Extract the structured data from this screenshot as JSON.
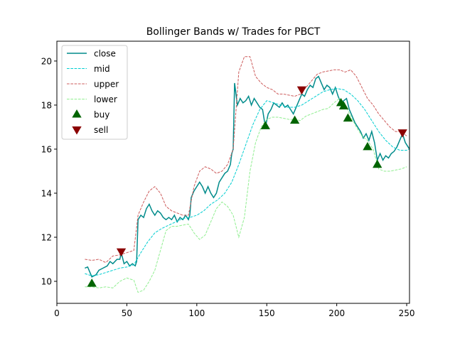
{
  "chart_data": {
    "type": "line",
    "title": "Bollinger Bands w/ Trades for PBCT",
    "xlabel": "",
    "ylabel": "",
    "xlim": [
      0,
      252
    ],
    "ylim": [
      9.0,
      20.9
    ],
    "x_ticks": [
      0,
      50,
      100,
      150,
      200,
      250
    ],
    "y_ticks": [
      10,
      12,
      14,
      16,
      18,
      20
    ],
    "grid": false,
    "legend_placement": "top-left",
    "series": [
      {
        "name": "close",
        "style": "solid",
        "color": "#008b8b",
        "points": [
          [
            20,
            10.6
          ],
          [
            22,
            10.65
          ],
          [
            25,
            10.2
          ],
          [
            28,
            10.3
          ],
          [
            30,
            10.5
          ],
          [
            33,
            10.6
          ],
          [
            36,
            10.7
          ],
          [
            38,
            10.9
          ],
          [
            40,
            10.8
          ],
          [
            43,
            11.0
          ],
          [
            45,
            11.0
          ],
          [
            46,
            11.3
          ],
          [
            48,
            10.8
          ],
          [
            50,
            10.9
          ],
          [
            52,
            10.7
          ],
          [
            54,
            10.8
          ],
          [
            56,
            10.7
          ],
          [
            57,
            10.9
          ],
          [
            58,
            12.8
          ],
          [
            60,
            13.0
          ],
          [
            62,
            12.9
          ],
          [
            64,
            13.3
          ],
          [
            66,
            13.5
          ],
          [
            68,
            13.2
          ],
          [
            70,
            13.0
          ],
          [
            72,
            13.2
          ],
          [
            74,
            13.1
          ],
          [
            76,
            12.9
          ],
          [
            78,
            12.8
          ],
          [
            80,
            12.9
          ],
          [
            82,
            12.8
          ],
          [
            84,
            13.0
          ],
          [
            86,
            12.7
          ],
          [
            88,
            12.9
          ],
          [
            90,
            12.8
          ],
          [
            92,
            13.0
          ],
          [
            94,
            12.8
          ],
          [
            95,
            13.0
          ],
          [
            96,
            13.8
          ],
          [
            98,
            14.1
          ],
          [
            100,
            14.3
          ],
          [
            102,
            14.5
          ],
          [
            104,
            14.3
          ],
          [
            106,
            14.0
          ],
          [
            108,
            14.3
          ],
          [
            110,
            14.0
          ],
          [
            112,
            13.8
          ],
          [
            114,
            14.0
          ],
          [
            116,
            14.5
          ],
          [
            118,
            14.7
          ],
          [
            120,
            14.9
          ],
          [
            122,
            15.0
          ],
          [
            124,
            15.3
          ],
          [
            125,
            15.8
          ],
          [
            126,
            16.0
          ],
          [
            127,
            19.0
          ],
          [
            129,
            18.0
          ],
          [
            131,
            18.3
          ],
          [
            133,
            18.1
          ],
          [
            135,
            18.2
          ],
          [
            137,
            18.4
          ],
          [
            139,
            18.0
          ],
          [
            141,
            18.3
          ],
          [
            143,
            18.1
          ],
          [
            145,
            17.9
          ],
          [
            147,
            17.8
          ],
          [
            149,
            17.0
          ],
          [
            151,
            17.6
          ],
          [
            153,
            17.8
          ],
          [
            155,
            18.1
          ],
          [
            157,
            18.0
          ],
          [
            159,
            17.9
          ],
          [
            161,
            18.1
          ],
          [
            163,
            17.9
          ],
          [
            165,
            18.0
          ],
          [
            167,
            17.8
          ],
          [
            169,
            17.6
          ],
          [
            171,
            17.9
          ],
          [
            173,
            18.2
          ],
          [
            175,
            18.5
          ],
          [
            177,
            18.4
          ],
          [
            179,
            18.7
          ],
          [
            181,
            18.9
          ],
          [
            183,
            18.8
          ],
          [
            185,
            19.2
          ],
          [
            187,
            19.3
          ],
          [
            189,
            19.0
          ],
          [
            191,
            18.7
          ],
          [
            193,
            18.9
          ],
          [
            195,
            18.8
          ],
          [
            197,
            18.5
          ],
          [
            199,
            18.8
          ],
          [
            201,
            18.4
          ],
          [
            203,
            18.1
          ],
          [
            205,
            18.2
          ],
          [
            207,
            18.3
          ],
          [
            209,
            17.8
          ],
          [
            211,
            17.5
          ],
          [
            213,
            17.2
          ],
          [
            215,
            17.0
          ],
          [
            217,
            16.8
          ],
          [
            219,
            16.5
          ],
          [
            221,
            16.7
          ],
          [
            223,
            16.4
          ],
          [
            225,
            16.8
          ],
          [
            227,
            16.3
          ],
          [
            229,
            15.5
          ],
          [
            231,
            15.8
          ],
          [
            233,
            15.5
          ],
          [
            235,
            15.7
          ],
          [
            237,
            15.6
          ],
          [
            239,
            15.8
          ],
          [
            241,
            15.9
          ],
          [
            243,
            16.1
          ],
          [
            245,
            16.4
          ],
          [
            247,
            16.7
          ],
          [
            249,
            16.3
          ],
          [
            252,
            16.0
          ]
        ]
      },
      {
        "name": "mid",
        "style": "dashed",
        "color": "#00ced1",
        "points": [
          [
            20,
            10.35
          ],
          [
            25,
            10.25
          ],
          [
            30,
            10.3
          ],
          [
            35,
            10.4
          ],
          [
            40,
            10.5
          ],
          [
            45,
            10.6
          ],
          [
            50,
            10.65
          ],
          [
            55,
            10.75
          ],
          [
            60,
            11.3
          ],
          [
            65,
            11.8
          ],
          [
            70,
            12.2
          ],
          [
            75,
            12.4
          ],
          [
            80,
            12.55
          ],
          [
            85,
            12.7
          ],
          [
            90,
            12.85
          ],
          [
            95,
            12.9
          ],
          [
            100,
            13.0
          ],
          [
            105,
            13.2
          ],
          [
            110,
            13.5
          ],
          [
            115,
            13.7
          ],
          [
            120,
            14.0
          ],
          [
            125,
            14.5
          ],
          [
            130,
            15.3
          ],
          [
            135,
            16.2
          ],
          [
            140,
            17.1
          ],
          [
            145,
            17.8
          ],
          [
            150,
            18.2
          ],
          [
            155,
            18.1
          ],
          [
            160,
            18.0
          ],
          [
            165,
            17.9
          ],
          [
            170,
            17.9
          ],
          [
            175,
            18.0
          ],
          [
            180,
            18.2
          ],
          [
            185,
            18.4
          ],
          [
            190,
            18.6
          ],
          [
            195,
            18.7
          ],
          [
            200,
            18.75
          ],
          [
            205,
            18.7
          ],
          [
            210,
            18.5
          ],
          [
            215,
            18.2
          ],
          [
            220,
            17.8
          ],
          [
            225,
            17.3
          ],
          [
            230,
            16.8
          ],
          [
            235,
            16.4
          ],
          [
            240,
            16.1
          ],
          [
            245,
            15.95
          ],
          [
            250,
            15.95
          ],
          [
            252,
            16.0
          ]
        ]
      },
      {
        "name": "upper",
        "style": "dashed",
        "color": "#cd5c5c",
        "points": [
          [
            20,
            11.0
          ],
          [
            25,
            10.95
          ],
          [
            30,
            11.0
          ],
          [
            35,
            10.85
          ],
          [
            40,
            11.15
          ],
          [
            45,
            11.2
          ],
          [
            50,
            11.3
          ],
          [
            55,
            11.4
          ],
          [
            58,
            13.0
          ],
          [
            62,
            13.6
          ],
          [
            66,
            14.1
          ],
          [
            70,
            14.3
          ],
          [
            74,
            14.0
          ],
          [
            78,
            13.4
          ],
          [
            82,
            13.2
          ],
          [
            86,
            13.1
          ],
          [
            90,
            13.0
          ],
          [
            94,
            13.0
          ],
          [
            98,
            14.3
          ],
          [
            102,
            15.0
          ],
          [
            106,
            15.2
          ],
          [
            110,
            15.1
          ],
          [
            114,
            14.9
          ],
          [
            118,
            15.0
          ],
          [
            122,
            15.3
          ],
          [
            126,
            16.0
          ],
          [
            130,
            19.5
          ],
          [
            134,
            20.2
          ],
          [
            138,
            20.2
          ],
          [
            142,
            19.3
          ],
          [
            146,
            19.0
          ],
          [
            150,
            18.8
          ],
          [
            154,
            18.7
          ],
          [
            158,
            18.5
          ],
          [
            162,
            18.5
          ],
          [
            166,
            18.45
          ],
          [
            170,
            18.4
          ],
          [
            174,
            18.5
          ],
          [
            178,
            18.8
          ],
          [
            182,
            19.1
          ],
          [
            186,
            19.4
          ],
          [
            190,
            19.5
          ],
          [
            194,
            19.55
          ],
          [
            198,
            19.6
          ],
          [
            202,
            19.6
          ],
          [
            206,
            19.5
          ],
          [
            210,
            19.6
          ],
          [
            214,
            19.3
          ],
          [
            218,
            18.8
          ],
          [
            222,
            18.3
          ],
          [
            226,
            18.0
          ],
          [
            230,
            17.6
          ],
          [
            234,
            17.3
          ],
          [
            238,
            17.0
          ],
          [
            242,
            16.8
          ],
          [
            246,
            16.8
          ],
          [
            250,
            16.6
          ]
        ]
      },
      {
        "name": "lower",
        "style": "dashed",
        "color": "#90ee90",
        "points": [
          [
            20,
            9.75
          ],
          [
            25,
            9.75
          ],
          [
            30,
            9.7
          ],
          [
            35,
            9.75
          ],
          [
            40,
            9.7
          ],
          [
            45,
            10.0
          ],
          [
            50,
            10.15
          ],
          [
            55,
            10.05
          ],
          [
            58,
            9.5
          ],
          [
            62,
            9.6
          ],
          [
            66,
            10.0
          ],
          [
            70,
            10.5
          ],
          [
            74,
            11.4
          ],
          [
            78,
            12.3
          ],
          [
            82,
            12.5
          ],
          [
            86,
            12.5
          ],
          [
            90,
            12.55
          ],
          [
            94,
            12.6
          ],
          [
            98,
            12.2
          ],
          [
            102,
            11.9
          ],
          [
            106,
            12.1
          ],
          [
            110,
            12.7
          ],
          [
            114,
            13.3
          ],
          [
            118,
            13.6
          ],
          [
            122,
            13.4
          ],
          [
            126,
            13.0
          ],
          [
            130,
            12.0
          ],
          [
            134,
            12.9
          ],
          [
            138,
            15.0
          ],
          [
            142,
            16.3
          ],
          [
            146,
            17.0
          ],
          [
            150,
            17.35
          ],
          [
            154,
            17.45
          ],
          [
            158,
            17.45
          ],
          [
            162,
            17.4
          ],
          [
            166,
            17.35
          ],
          [
            170,
            17.35
          ],
          [
            174,
            17.3
          ],
          [
            178,
            17.5
          ],
          [
            182,
            17.6
          ],
          [
            186,
            17.7
          ],
          [
            190,
            17.8
          ],
          [
            194,
            17.85
          ],
          [
            198,
            18.1
          ],
          [
            202,
            18.3
          ],
          [
            206,
            18.0
          ],
          [
            210,
            17.5
          ],
          [
            214,
            17.0
          ],
          [
            218,
            16.6
          ],
          [
            222,
            16.4
          ],
          [
            226,
            16.0
          ],
          [
            230,
            15.1
          ],
          [
            234,
            15.0
          ],
          [
            238,
            15.0
          ],
          [
            242,
            15.05
          ],
          [
            246,
            15.1
          ],
          [
            250,
            15.2
          ]
        ]
      }
    ],
    "markers": [
      {
        "name": "buy",
        "shape": "triangle-up",
        "color": "#006400",
        "points": [
          [
            25,
            9.9
          ],
          [
            149,
            17.05
          ],
          [
            170,
            17.3
          ],
          [
            203,
            18.1
          ],
          [
            205,
            17.95
          ],
          [
            208,
            17.4
          ],
          [
            222,
            16.1
          ],
          [
            229,
            15.3
          ]
        ]
      },
      {
        "name": "sell",
        "shape": "triangle-down",
        "color": "#8b0000",
        "points": [
          [
            46,
            11.35
          ],
          [
            175,
            18.7
          ],
          [
            247,
            16.75
          ]
        ]
      }
    ]
  }
}
